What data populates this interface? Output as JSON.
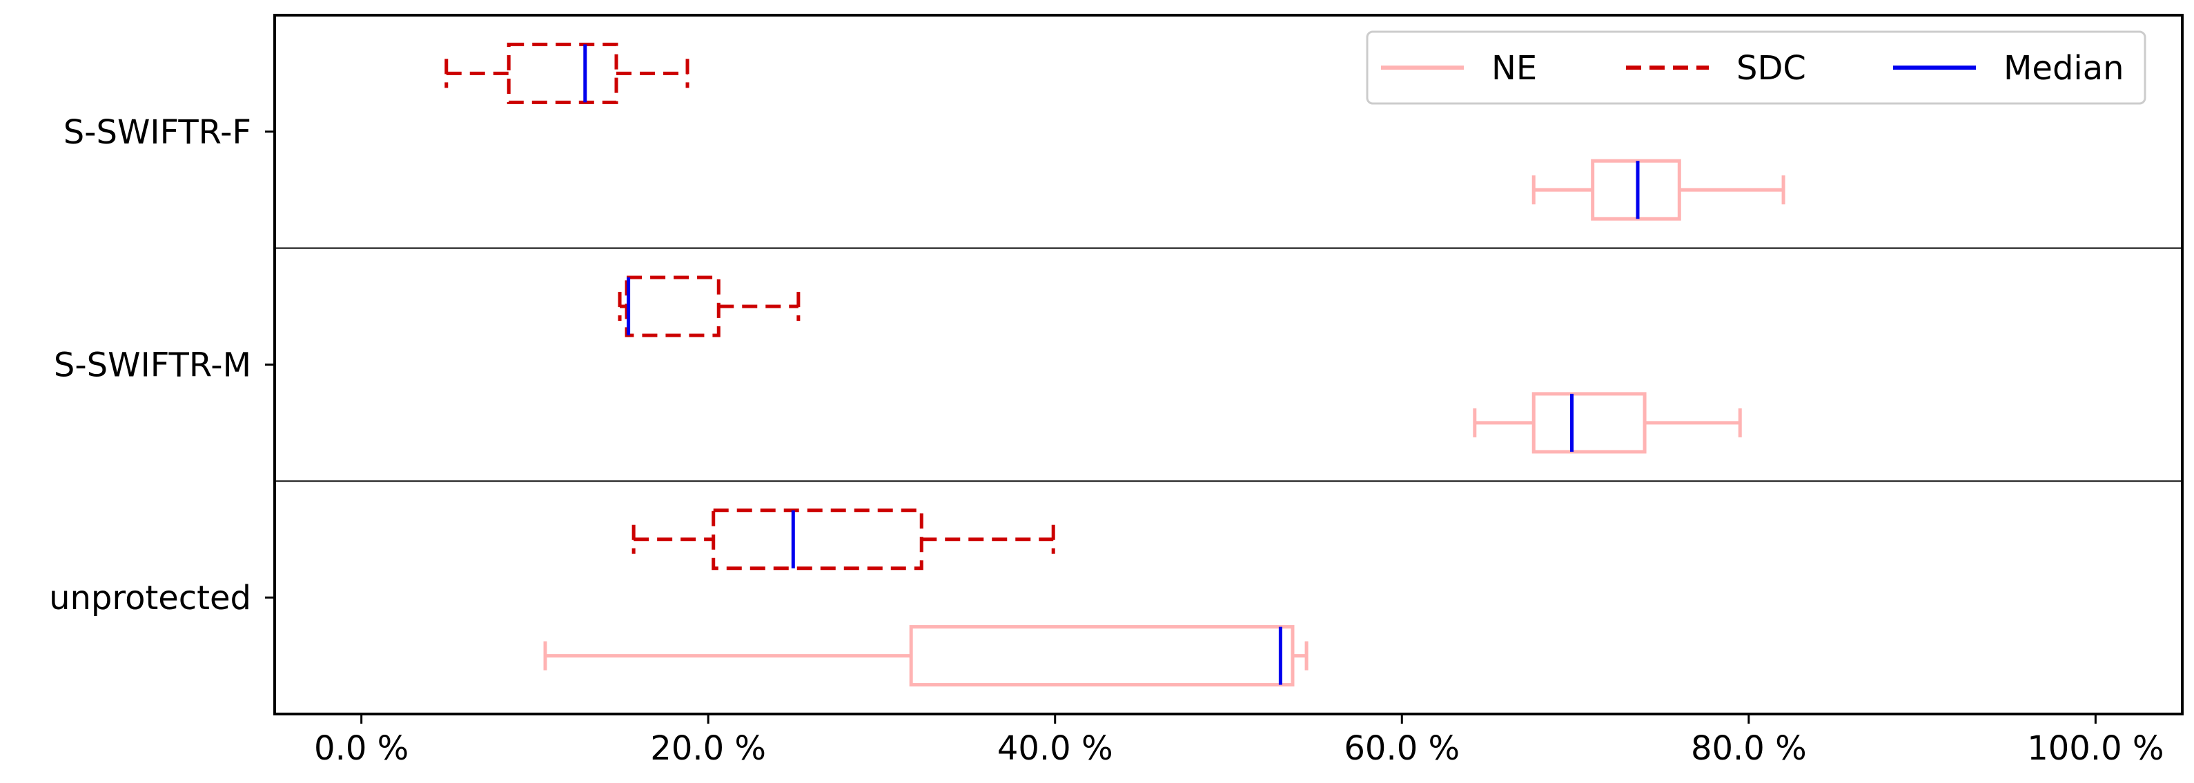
{
  "chart_data": {
    "type": "boxplot",
    "orientation": "horizontal",
    "categories": [
      "S-SWIFTR-F",
      "S-SWIFTR-M",
      "unprotected"
    ],
    "x_ticks": [
      0,
      20,
      40,
      60,
      80,
      100
    ],
    "x_tick_labels": [
      "0.0 %",
      "20.0 %",
      "40.0 %",
      "60.0 %",
      "80.0 %",
      "100.0 %"
    ],
    "xlim": [
      -5,
      105
    ],
    "grid": false,
    "legend_position": "upper-right",
    "legend": [
      {
        "name": "NE",
        "style": "solid",
        "color": "#ffb3b3"
      },
      {
        "name": "SDC",
        "style": "dashed",
        "color": "#cc0000"
      },
      {
        "name": "Median",
        "style": "solid",
        "color": "#0000ee"
      }
    ],
    "series": [
      {
        "name": "SDC",
        "color": "#cc0000",
        "dashed": true,
        "boxes": [
          {
            "category": "S-SWIFTR-F",
            "whisker_low": 4.9,
            "q1": 8.5,
            "median": 12.9,
            "q3": 14.7,
            "whisker_high": 18.8
          },
          {
            "category": "S-SWIFTR-M",
            "whisker_low": 14.9,
            "q1": 15.3,
            "median": 15.4,
            "q3": 20.6,
            "whisker_high": 25.2
          },
          {
            "category": "unprotected",
            "whisker_low": 15.7,
            "q1": 20.3,
            "median": 24.9,
            "q3": 32.3,
            "whisker_high": 39.9
          }
        ]
      },
      {
        "name": "NE",
        "color": "#ffb3b3",
        "dashed": false,
        "boxes": [
          {
            "category": "S-SWIFTR-F",
            "whisker_low": 67.6,
            "q1": 71.0,
            "median": 73.6,
            "q3": 76.0,
            "whisker_high": 82.0
          },
          {
            "category": "S-SWIFTR-M",
            "whisker_low": 64.2,
            "q1": 67.6,
            "median": 69.8,
            "q3": 74.0,
            "whisker_high": 79.5
          },
          {
            "category": "unprotected",
            "whisker_low": 10.6,
            "q1": 31.7,
            "median": 53.0,
            "q3": 53.7,
            "whisker_high": 54.5
          }
        ]
      }
    ],
    "median_color": "#0000ee"
  }
}
